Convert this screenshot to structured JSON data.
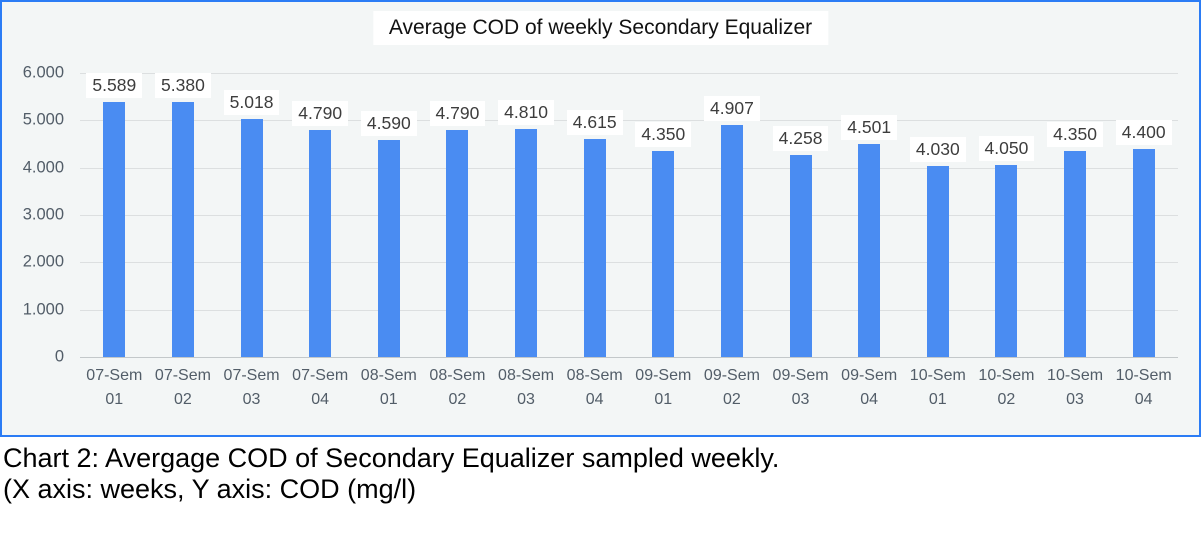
{
  "chart_data": {
    "type": "bar",
    "title": "Average COD of weekly Secondary Equalizer",
    "categories": [
      "07-Sem 01",
      "07-Sem 02",
      "07-Sem 03",
      "07-Sem 04",
      "08-Sem 01",
      "08-Sem 02",
      "08-Sem 03",
      "08-Sem 04",
      "09-Sem 01",
      "09-Sem 02",
      "09-Sem 03",
      "09-Sem 04",
      "10-Sem 01",
      "10-Sem 02",
      "10-Sem 03",
      "10-Sem 04"
    ],
    "values": [
      5589,
      5380,
      5018,
      4790,
      4590,
      4790,
      4810,
      4615,
      4350,
      4907,
      4258,
      4501,
      4030,
      4050,
      4350,
      4400
    ],
    "value_labels": [
      "5.589",
      "5.380",
      "5.018",
      "4.790",
      "4.590",
      "4.790",
      "4.810",
      "4.615",
      "4.350",
      "4.907",
      "4.258",
      "4.501",
      "4.030",
      "4.050",
      "4.350",
      "4.400"
    ],
    "xlabel": "weeks",
    "ylabel": "COD (mg/l)",
    "ylim": [
      0,
      6000
    ],
    "yticks": [
      {
        "label": "6.000",
        "value": 6000
      },
      {
        "label": "5.000",
        "value": 5000
      },
      {
        "label": "4.000",
        "value": 4000
      },
      {
        "label": "3.000",
        "value": 3000
      },
      {
        "label": "2.000",
        "value": 2000
      },
      {
        "label": "1.000",
        "value": 1000
      },
      {
        "label": "0",
        "value": 0
      }
    ],
    "grid": true,
    "legend_position": "none",
    "bar_color": "#4a8cf2"
  },
  "colors": {
    "frame_border": "#2b7cf5",
    "chart_background": "#f3f6f6",
    "gridline": "#dcdfe0",
    "baseline": "#c3c8ca",
    "axis_text": "#525d68",
    "value_label_text": "#3d3d3d"
  },
  "caption": {
    "line1": "Chart 2: Avergage COD of Secondary Equalizer sampled weekly.",
    "line2": "(X axis: weeks, Y axis: COD (mg/l)"
  }
}
